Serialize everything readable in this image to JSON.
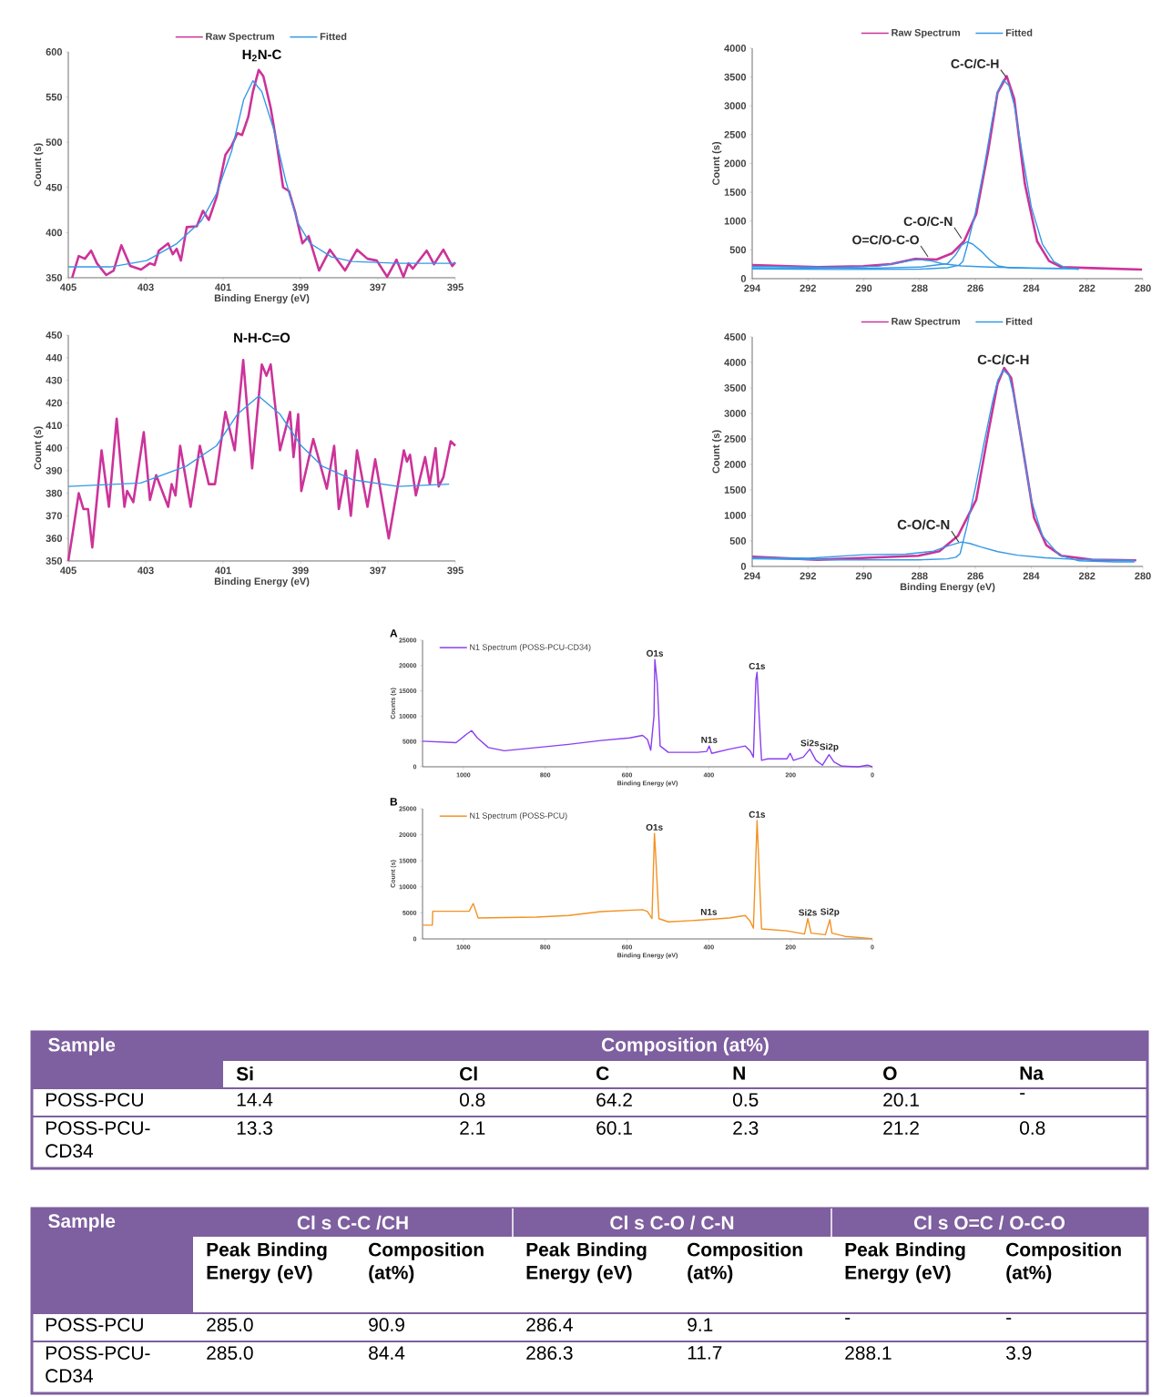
{
  "chart_data": [
    {
      "type": "line",
      "title": "H$_{2}$N-C",
      "xlabel": "Binding Energy (eV)",
      "ylabel": "Count (s)",
      "xlim": [
        405,
        395
      ],
      "ylim": [
        350,
        600
      ],
      "xticks": [
        405,
        403,
        401,
        399,
        397,
        395
      ],
      "yticks": [
        350,
        400,
        450,
        500,
        550,
        600
      ],
      "legend": "top",
      "series": [
        {
          "name": "Raw Spectrum",
          "color": "#cc3399",
          "x": [
            404.9,
            404.73,
            404.57,
            404.41,
            404.26,
            404.02,
            403.83,
            403.63,
            403.4,
            403.12,
            402.89,
            402.77,
            402.66,
            402.42,
            402.3,
            402.2,
            402.09,
            401.94,
            401.68,
            401.52,
            401.37,
            401.17,
            400.94,
            400.78,
            400.63,
            400.51,
            400.35,
            400.23,
            400.08,
            399.96,
            399.77,
            399.61,
            399.45,
            399.3,
            399.14,
            398.95,
            398.79,
            398.52,
            398.24,
            397.85,
            397.54,
            397.27,
            397.03,
            396.76,
            396.52,
            396.34,
            396.21,
            396.1,
            395.74,
            395.55,
            395.31,
            395.08,
            395.0
          ],
          "values": [
            350,
            374,
            371,
            380,
            366,
            353,
            358,
            386,
            363,
            359,
            366,
            364,
            380,
            388,
            376,
            382,
            369,
            406,
            407,
            424,
            414,
            439,
            486,
            496,
            510,
            508,
            528,
            556,
            580,
            573,
            538,
            497,
            450,
            446,
            423,
            388,
            396,
            358,
            381,
            358,
            381,
            371,
            369,
            351,
            370,
            351,
            366,
            360,
            380,
            365,
            381,
            363,
            367
          ]
        },
        {
          "name": "Fitted",
          "color": "#3399e6",
          "x": [
            405,
            403.91,
            402.97,
            402.19,
            401.56,
            401.17,
            400.78,
            400.47,
            400.23,
            400.0,
            399.69,
            399.38,
            399.06,
            398.75,
            398.2,
            397.66,
            396.48,
            395.0
          ],
          "values": [
            362,
            362,
            369,
            388,
            413,
            443,
            490,
            547,
            568,
            556,
            514,
            457,
            410,
            388,
            373,
            368,
            366,
            366
          ]
        }
      ]
    },
    {
      "type": "line",
      "title": "N-H-C=O",
      "xlabel": "Binding Energy (eV)",
      "ylabel": "Count (s)",
      "xlim": [
        405,
        395
      ],
      "ylim": [
        350,
        450
      ],
      "xticks": [
        405,
        403,
        401,
        399,
        397,
        395
      ],
      "yticks": [
        350,
        360,
        370,
        380,
        390,
        400,
        410,
        420,
        430,
        440,
        450
      ],
      "series": [
        {
          "color": "#cc3399",
          "x": [
            405.0,
            404.88,
            404.73,
            404.61,
            404.49,
            404.38,
            404.14,
            403.95,
            403.75,
            403.55,
            403.48,
            403.32,
            403.05,
            402.89,
            402.73,
            402.42,
            402.33,
            402.23,
            402.11,
            401.84,
            401.6,
            401.37,
            401.21,
            400.94,
            400.7,
            400.48,
            400.25,
            400.0,
            399.88,
            399.77,
            399.53,
            399.27,
            399.18,
            399.06,
            398.98,
            398.67,
            398.32,
            398.13,
            398.01,
            397.83,
            397.7,
            397.54,
            397.27,
            397.07,
            396.72,
            396.33,
            396.25,
            396.17,
            396.02,
            395.78,
            395.66,
            395.51,
            395.43,
            395.31,
            395.12,
            395.0
          ],
          "values": [
            350,
            363,
            380,
            373,
            373,
            356,
            399,
            374,
            413,
            374,
            381,
            376,
            407,
            377,
            388,
            374,
            384,
            379,
            401,
            374,
            401,
            384,
            384,
            416,
            399,
            439,
            391,
            437,
            432,
            437,
            399,
            416,
            396,
            415,
            381,
            404,
            382,
            401,
            373,
            390,
            370,
            399,
            374,
            395,
            360,
            399,
            394,
            397,
            379,
            396,
            384,
            400,
            383,
            387,
            403,
            401
          ]
        },
        {
          "color": "#3399e6",
          "x": [
            405,
            403.13,
            401.95,
            401.17,
            400.63,
            400.08,
            399.53,
            398.98,
            398.44,
            397.66,
            396.48,
            395.16
          ],
          "values": [
            383,
            384.5,
            392,
            401,
            415,
            423,
            415,
            401,
            392,
            386,
            383,
            384
          ]
        }
      ]
    },
    {
      "type": "line",
      "ylabel": "Count (s)",
      "xlim": [
        294,
        280
      ],
      "ylim": [
        0,
        4000
      ],
      "xticks": [
        294,
        292,
        290,
        288,
        286,
        284,
        282,
        280
      ],
      "yticks": [
        0,
        500,
        1000,
        1500,
        2000,
        2500,
        3000,
        3500,
        4000
      ],
      "legend": "top",
      "annotations": [
        {
          "text": "C-C/C-H",
          "x": 284.9,
          "y": 3500
        },
        {
          "text": "C-O/C-N",
          "x": 286.5,
          "y": 700
        },
        {
          "text": "O=C/O-C-O",
          "x": 287.7,
          "y": 380
        }
      ],
      "series": [
        {
          "name": "Raw Spectrum",
          "color": "#cc3399",
          "x": [
            294,
            291.65,
            290.02,
            289.03,
            288.16,
            287.39,
            286.85,
            286.41,
            285.97,
            285.54,
            285.21,
            284.88,
            284.61,
            284.23,
            283.79,
            283.36,
            282.92,
            281.83,
            280.03
          ],
          "values": [
            237,
            200,
            216,
            253,
            342,
            332,
            437,
            647,
            1121,
            2226,
            3226,
            3516,
            3121,
            1647,
            647,
            305,
            200,
            184,
            158
          ]
        },
        {
          "name": "Fitted",
          "color": "#3399e6",
          "x": [
            294,
            291,
            288,
            287,
            286.6,
            286.45,
            286.3,
            286.0,
            285.7,
            285.4,
            285.2,
            285.0,
            284.8,
            284.6,
            284.3,
            284.0,
            283.6,
            283.2,
            282.8,
            282.3
          ],
          "values": [
            170,
            160,
            165,
            190,
            230,
            300,
            560,
            1150,
            1900,
            2750,
            3250,
            3450,
            3350,
            3000,
            2100,
            1250,
            600,
            300,
            190,
            160
          ]
        },
        {
          "color": "#3399e6",
          "x": [
            294,
            290,
            288,
            287,
            286.7,
            286.5,
            286.3,
            286.1,
            285.8,
            285.5,
            285.2,
            284.8,
            284,
            282.3
          ],
          "values": [
            190,
            180,
            200,
            260,
            420,
            580,
            640,
            600,
            480,
            330,
            220,
            190,
            180,
            170
          ]
        },
        {
          "color": "#3399e6",
          "x": [
            294,
            291,
            289.5,
            288.8,
            288.3,
            288.0,
            287.6,
            287.2,
            286.5,
            285.5,
            284,
            282.3
          ],
          "values": [
            215,
            195,
            215,
            270,
            320,
            330,
            310,
            260,
            220,
            200,
            185,
            175
          ]
        }
      ]
    },
    {
      "type": "line",
      "xlabel": "Binding Energy (eV)",
      "ylabel": "Count (s)",
      "xlim": [
        294,
        280
      ],
      "ylim": [
        0,
        4500
      ],
      "xticks": [
        294,
        292,
        290,
        288,
        286,
        284,
        282,
        280
      ],
      "yticks": [
        0,
        500,
        1000,
        1500,
        2000,
        2500,
        3000,
        3500,
        4000,
        4500
      ],
      "legend": "top",
      "annotations": [
        {
          "text": "C-C/C-H",
          "x": 285.0,
          "y": 3900
        },
        {
          "text": "C-O/C-N",
          "x": 286.6,
          "y": 480
        }
      ],
      "series": [
        {
          "name": "Raw Spectrum",
          "color": "#cc3399",
          "x": [
            294,
            291.65,
            289.47,
            288.05,
            287.29,
            286.63,
            285.97,
            285.54,
            285.21,
            284.97,
            284.72,
            284.34,
            283.9,
            283.46,
            282.92,
            281.83,
            280.24
          ],
          "values": [
            191,
            131,
            179,
            209,
            298,
            596,
            1311,
            2622,
            3576,
            3892,
            3695,
            2443,
            954,
            417,
            209,
            131,
            119
          ]
        },
        {
          "name": "Fitted",
          "color": "#3399e6",
          "x": [
            294,
            291,
            288,
            287,
            286.7,
            286.55,
            286.3,
            286.0,
            285.7,
            285.4,
            285.2,
            285.0,
            284.8,
            284.6,
            284.3,
            284.0,
            283.6,
            283.0,
            282.3,
            281,
            280.3
          ],
          "values": [
            150,
            130,
            130,
            150,
            180,
            250,
            800,
            1550,
            2400,
            3200,
            3650,
            3850,
            3750,
            3300,
            2300,
            1300,
            600,
            220,
            110,
            90,
            90
          ]
        },
        {
          "color": "#3399e6",
          "x": [
            294,
            292,
            290,
            288.5,
            287.5,
            287.0,
            286.5,
            286.2,
            285.8,
            285.2,
            284.5,
            283.5,
            282.5,
            281,
            280.3
          ],
          "values": [
            170,
            160,
            230,
            240,
            300,
            400,
            480,
            450,
            380,
            290,
            220,
            170,
            140,
            125,
            120
          ]
        }
      ]
    },
    {
      "type": "line",
      "xlabel": "Binding Energy (eV)",
      "ylabel": "Counts (s)",
      "xlim": [
        1100,
        0
      ],
      "ylim": [
        0,
        25000
      ],
      "xticks": [
        1000,
        800,
        600,
        400,
        200,
        0
      ],
      "yticks": [
        0,
        5000,
        10000,
        15000,
        20000,
        25000
      ],
      "legend": "top left",
      "annotations": [
        "A",
        {
          "text": "O1s",
          "x": 532,
          "y": 21200
        },
        {
          "text": "C1s",
          "x": 282,
          "y": 18670
        },
        {
          "text": "N1s",
          "x": 399,
          "y": 4110
        },
        {
          "text": "Si2s",
          "x": 153,
          "y": 3480
        },
        {
          "text": "Si2p",
          "x": 106,
          "y": 2400
        }
      ],
      "series": [
        {
          "name": "N1 Spectrum (POSS-PCU-CD34)",
          "color": "#8a3ff0",
          "x": [
            1100,
            1018,
            994,
            980,
            966,
            939,
            900,
            821,
            743,
            664,
            593,
            562,
            550,
            542,
            534,
            532,
            526,
            519,
            499,
            428,
            405,
            399,
            393,
            350,
            311,
            299,
            291,
            285,
            282,
            277,
            271,
            256,
            209,
            201,
            193,
            169,
            153,
            138,
            122,
            106,
            94,
            75,
            35,
            12,
            0
          ],
          "values": [
            5060,
            4750,
            6330,
            7150,
            5700,
            3800,
            3160,
            3800,
            4430,
            5190,
            5700,
            6200,
            5380,
            3290,
            10100,
            21200,
            16450,
            4110,
            2850,
            2850,
            3040,
            4110,
            2660,
            3480,
            4110,
            3160,
            1900,
            17100,
            18670,
            10100,
            1270,
            1580,
            1580,
            2660,
            1270,
            1900,
            3480,
            1270,
            320,
            2400,
            950,
            130,
            0,
            320,
            0
          ]
        }
      ]
    },
    {
      "type": "line",
      "xlabel": "Binding Energy (eV)",
      "ylabel": "Count (s)",
      "xlim": [
        1100,
        0
      ],
      "ylim": [
        0,
        25000
      ],
      "xticks": [
        1000,
        800,
        600,
        400,
        200,
        0
      ],
      "yticks": [
        0,
        5000,
        10000,
        15000,
        20000,
        25000
      ],
      "legend": "top left",
      "annotations": [
        "B",
        {
          "text": "O1s",
          "x": 533,
          "y": 20250
        },
        {
          "text": "C1s",
          "x": 282,
          "y": 22720
        },
        {
          "text": "N1s",
          "x": 400,
          "y": 4000
        },
        {
          "text": "Si2s",
          "x": 158,
          "y": 3890
        },
        {
          "text": "Si2p",
          "x": 104,
          "y": 3700
        }
      ],
      "series": [
        {
          "name": "N1 Spectrum (POSS-PCU)",
          "color": "#f39224",
          "x": [
            1100,
            1076,
            1075,
            986,
            976,
            964,
            821,
            743,
            664,
            562,
            550,
            539,
            533,
            530,
            522,
            499,
            428,
            350,
            311,
            299,
            291,
            282,
            277,
            271,
            209,
            166,
            158,
            150,
            115,
            104,
            99,
            67,
            0
          ],
          "values": [
            2650,
            2650,
            5310,
            5310,
            6790,
            4010,
            4200,
            4510,
            5250,
            5620,
            5250,
            3890,
            20250,
            16230,
            3890,
            3270,
            3580,
            4010,
            4510,
            3400,
            2040,
            22720,
            13150,
            1910,
            1540,
            930,
            3890,
            1110,
            800,
            3700,
            1110,
            490,
            60
          ]
        }
      ]
    },
    {
      "type": "other",
      "ylabel": "Sample",
      "annotations": [
        "Composition (at%)"
      ],
      "categories": [
        "Si",
        "Cl",
        "C",
        "N",
        "O",
        "Na"
      ],
      "y_categories": [
        "POSS-PCU",
        "POSS-PCU-CD34"
      ],
      "cell_labels": [
        [
          "14.4",
          "0.8",
          "64.2",
          "0.5",
          "20.1",
          "-"
        ],
        [
          "13.3",
          "2.1",
          "60.1",
          "2.3",
          "21.2",
          "0.8"
        ]
      ]
    },
    {
      "type": "other",
      "ylabel": "Sample",
      "annotations": [
        "Cl s C-C /CH",
        "Cl s C-O / C-N",
        "Cl s O=C / O-C-O"
      ],
      "categories": [
        "Peak Binding Energy (eV)",
        "Composition (at%)",
        "Peak Binding Energy (eV)",
        "Composition (at%)",
        "Peak Binding Energy (eV)",
        "Composition (at%)"
      ],
      "y_categories": [
        "POSS-PCU",
        "POSS-PCU-CD34"
      ],
      "cell_labels": [
        [
          "285.0",
          "90.9",
          "286.4",
          "9.1",
          "-",
          "-"
        ],
        [
          "285.0",
          "84.4",
          "286.3",
          "11.7",
          "288.1",
          "3.9"
        ]
      ]
    }
  ]
}
